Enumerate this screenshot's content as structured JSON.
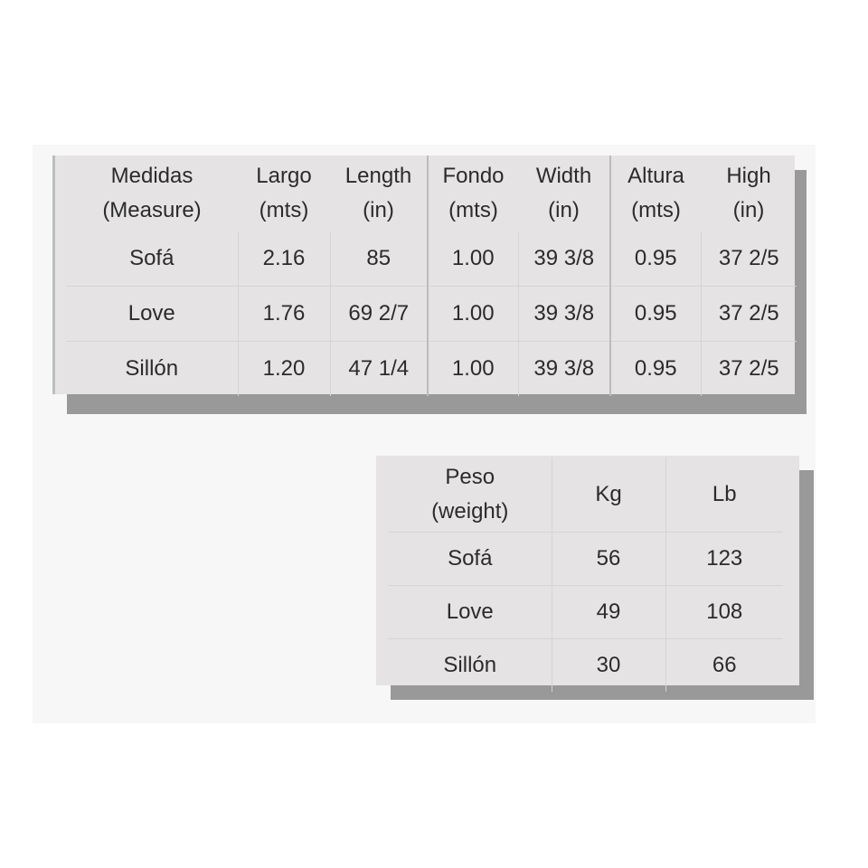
{
  "measures": {
    "header": [
      [
        "Medidas",
        "(Measure)"
      ],
      [
        "Largo",
        "(mts)"
      ],
      [
        "Length",
        "(in)"
      ],
      [
        "Fondo",
        "(mts)"
      ],
      [
        "Width",
        "(in)"
      ],
      [
        "Altura",
        "(mts)"
      ],
      [
        "High",
        "(in)"
      ]
    ],
    "rows": [
      [
        "Sofá",
        "2.16",
        "85",
        "1.00",
        "39 3/8",
        "0.95",
        "37 2/5"
      ],
      [
        "Love",
        "1.76",
        "69 2/7",
        "1.00",
        "39 3/8",
        "0.95",
        "37 2/5"
      ],
      [
        "Sillón",
        "1.20",
        "47 1/4",
        "1.00",
        "39 3/8",
        "0.95",
        "37 2/5"
      ]
    ]
  },
  "weight": {
    "header": [
      [
        "Peso",
        "(weight)"
      ],
      [
        "Kg"
      ],
      [
        "Lb"
      ]
    ],
    "rows": [
      [
        "Sofá",
        "56",
        "123"
      ],
      [
        "Love",
        "49",
        "108"
      ],
      [
        "Sillón",
        "30",
        "66"
      ]
    ]
  }
}
